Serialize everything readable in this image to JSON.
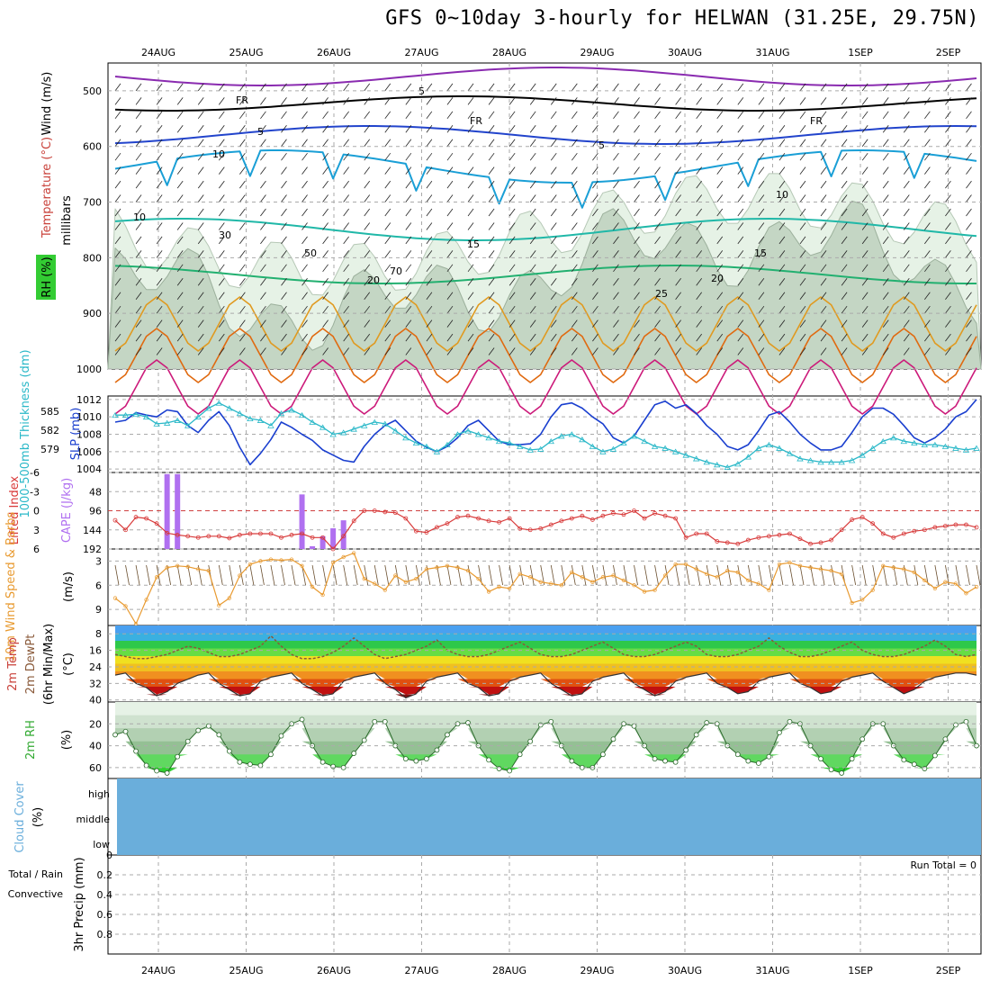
{
  "title": "GFS 0~10day 3-hourly for HELWAN (31.25E, 29.75N)",
  "chart_data": [
    {
      "type": "line",
      "panel": "upper_air",
      "dates": [
        "24AUG",
        "25AUG",
        "26AUG",
        "27AUG",
        "28AUG",
        "29AUG",
        "30AUG",
        "31AUG",
        "1SEP",
        "2SEP"
      ],
      "ylabel": "millibars",
      "yticks": [
        500,
        600,
        700,
        800,
        900,
        1000
      ],
      "ylim": [
        450,
        1000
      ],
      "label_wind": "Wind (m/s)",
      "label_temp": "Temperature (°C)",
      "label_rh": "RH (%)",
      "isotherm_labels": [
        "5",
        "FR",
        "5",
        "10",
        "15",
        "20",
        "25",
        "FR",
        "5",
        "10",
        "15",
        "20",
        "FR"
      ],
      "rh_contour_labels": [
        "10",
        "30",
        "50",
        "70"
      ],
      "colors": {
        "t_m5": "#8a2bb0",
        "t_0": "#000000",
        "t_5": "#2244cc",
        "t_10": "#1a9fd6",
        "t_15": "#20b8a8",
        "t_20": "#22b070",
        "t_25": "#e09a20",
        "t_30": "#e06a10",
        "t_35": "#cc1a7a",
        "rh_lo": "#e8f4e8",
        "rh_mid": "#c8dcc8",
        "rh_hi": "#9cb89c",
        "rh_top": "#44c044"
      }
    },
    {
      "type": "line",
      "panel": "pressure",
      "label_thick": "1000-500mb Thickness (dm)",
      "label_slp": "SLP (mb)",
      "yticks_left": [
        579,
        582,
        585
      ],
      "yticks_right": [
        1004,
        1006,
        1008,
        1010,
        1012
      ],
      "series": [
        {
          "values": [
            1009.4,
            1009.6,
            1010.5,
            1010.2,
            1010.0,
            1010.8,
            1010.6,
            1009.0,
            1008.2,
            1009.6,
            1010.6,
            1009.0,
            1006.5,
            1004.5,
            1005.8,
            1007.4,
            1009.4,
            1008.8,
            1008.0,
            1007.3,
            1006.2,
            1005.6,
            1005.0,
            1004.8,
            1006.6,
            1008.0,
            1009.0,
            1009.6,
            1008.4,
            1007.2,
            1006.5,
            1006.0,
            1006.6,
            1007.6,
            1009.0,
            1009.6,
            1008.4,
            1007.2,
            1006.8,
            1006.8,
            1006.9,
            1008.0,
            1010.0,
            1011.4,
            1011.6,
            1011.0,
            1010.0,
            1009.2,
            1007.6,
            1007.0,
            1007.8,
            1009.6,
            1011.4,
            1011.8,
            1011.0,
            1011.4,
            1010.4,
            1009.0,
            1008.0,
            1006.6,
            1006.2,
            1006.8,
            1008.4,
            1010.2,
            1010.6,
            1009.4,
            1008.0,
            1007.0,
            1006.2,
            1006.2,
            1006.6,
            1008.2,
            1010.0,
            1011.0,
            1011.0,
            1010.3,
            1009.0,
            1007.6,
            1007.0,
            1007.6,
            1008.6,
            1010.0,
            1010.6,
            1012.0
          ]
        },
        {
          "values": [
            1010.2,
            1010.2,
            1010.3,
            1010.0,
            1009.2,
            1009.3,
            1009.6,
            1009.0,
            1010.0,
            1011.0,
            1011.6,
            1011.0,
            1010.4,
            1009.8,
            1009.6,
            1009.0,
            1010.4,
            1010.8,
            1010.2,
            1009.4,
            1008.8,
            1008.0,
            1008.2,
            1008.6,
            1009.0,
            1009.4,
            1009.2,
            1008.4,
            1007.6,
            1007.0,
            1006.6,
            1006.0,
            1006.8,
            1008.0,
            1008.4,
            1008.0,
            1007.6,
            1007.2,
            1007.0,
            1006.6,
            1006.2,
            1006.3,
            1007.2,
            1007.8,
            1008.0,
            1007.4,
            1006.6,
            1006.0,
            1006.3,
            1007.0,
            1007.8,
            1007.2,
            1006.6,
            1006.4,
            1006.0,
            1005.6,
            1005.2,
            1004.8,
            1004.5,
            1004.2,
            1004.6,
            1005.4,
            1006.4,
            1006.8,
            1006.4,
            1005.8,
            1005.2,
            1005.0,
            1004.8,
            1004.8,
            1004.8,
            1005.0,
            1005.6,
            1006.4,
            1007.2,
            1007.6,
            1007.2,
            1007.0,
            1006.8,
            1006.8,
            1006.6,
            1006.4,
            1006.2,
            1006.4
          ]
        }
      ]
    },
    {
      "type": "bar",
      "panel": "stability",
      "label_li": "Lifted Index",
      "label_cape": "CAPE (J/kg)",
      "li_ticks": [
        "-6",
        "-3",
        "0",
        "3",
        "6"
      ],
      "cape_ticks": [
        "48",
        "96",
        "144",
        "192"
      ],
      "cape_values": [
        0,
        0,
        0,
        0,
        0,
        4,
        4,
        0,
        0,
        0,
        0,
        0,
        0,
        0,
        0,
        0,
        0,
        0,
        0,
        0,
        0,
        0,
        0,
        0,
        0,
        0,
        0,
        0,
        0,
        0,
        0,
        0,
        0,
        0,
        0,
        0,
        0,
        0,
        0,
        0,
        0,
        0,
        0,
        0,
        0,
        0,
        0,
        0,
        0,
        0,
        0,
        0,
        0,
        0,
        0,
        0,
        0,
        0,
        0,
        0,
        0,
        0,
        0,
        0,
        0,
        0,
        0,
        0,
        0,
        0,
        0,
        0,
        0,
        0,
        0,
        0,
        0,
        0,
        0,
        0,
        0,
        0,
        0,
        0
      ],
      "cape_peak_day26": [
        55,
        185,
        160,
        140,
        120,
        0
      ],
      "li_values": [
        1.5,
        3.0,
        1.0,
        1.2,
        2.0,
        3.5,
        3.8,
        4.0,
        4.2,
        4.0,
        4.0,
        4.3,
        3.8,
        3.6,
        3.6,
        3.6,
        4.2,
        3.8,
        3.6,
        4.2,
        4.2,
        6.0,
        4.0,
        1.6,
        0.0,
        0.0,
        0.2,
        0.3,
        1.2,
        3.2,
        3.4,
        2.6,
        2.0,
        1.0,
        0.8,
        1.2,
        1.6,
        1.8,
        1.2,
        2.8,
        3.0,
        2.8,
        2.2,
        1.6,
        1.2,
        0.8,
        1.4,
        0.8,
        0.4,
        0.6,
        0.0,
        1.2,
        0.4,
        0.8,
        1.2,
        4.2,
        3.6,
        3.6,
        4.8,
        5.0,
        5.2,
        4.6,
        4.2,
        4.0,
        3.8,
        3.6,
        4.4,
        5.2,
        5.0,
        4.6,
        3.0,
        1.4,
        1.0,
        2.0,
        3.6,
        4.2,
        3.6,
        3.2,
        3.0,
        2.6,
        2.4,
        2.2,
        2.2,
        2.6
      ]
    },
    {
      "type": "line",
      "panel": "wind10m",
      "label": "10m Wind Speed & Barbs",
      "unit": "(m/s)",
      "yticks": [
        3,
        6,
        9
      ],
      "values": [
        7.6,
        8.6,
        10.8,
        7.8,
        5.0,
        3.8,
        3.6,
        3.7,
        4.0,
        4.2,
        8.5,
        7.6,
        4.8,
        3.4,
        3.0,
        2.8,
        2.9,
        2.8,
        3.6,
        6.2,
        7.2,
        3.2,
        2.5,
        2.0,
        5.2,
        5.8,
        6.6,
        4.8,
        5.6,
        5.2,
        4.0,
        3.8,
        3.6,
        3.8,
        4.2,
        5.2,
        6.8,
        6.2,
        6.4,
        4.6,
        5.0,
        5.6,
        5.8,
        6.0,
        4.4,
        5.0,
        5.6,
        5.0,
        4.8,
        5.4,
        6.0,
        6.8,
        6.6,
        4.8,
        3.4,
        3.4,
        4.0,
        4.6,
        5.0,
        4.2,
        4.4,
        5.4,
        5.8,
        6.6,
        3.4,
        3.2,
        3.6,
        3.8,
        4.0,
        4.2,
        4.6,
        8.2,
        7.8,
        6.6,
        3.6,
        3.8,
        4.0,
        4.4,
        5.4,
        6.4,
        5.6,
        5.8,
        7.0,
        6.2
      ]
    },
    {
      "type": "area",
      "panel": "temp2m",
      "label_temp": "2m Temp",
      "label_dew": "2m DewPt",
      "label_range": "(6hr Min/Max)",
      "unit": "(°C)",
      "yticks": [
        8,
        16,
        24,
        32,
        40
      ],
      "temp": [
        28,
        27,
        32,
        34,
        38,
        36,
        32,
        30,
        28,
        27,
        32,
        35,
        38,
        37,
        31,
        29,
        28,
        27,
        32,
        35,
        38,
        37,
        31,
        29,
        28,
        27,
        32,
        35,
        39,
        37,
        31,
        29,
        28,
        27,
        32,
        34,
        38,
        37,
        31,
        29,
        28,
        27,
        32,
        35,
        38,
        37,
        31,
        29,
        28,
        27,
        32,
        35,
        38,
        36,
        31,
        29,
        28,
        27,
        32,
        34,
        37,
        36,
        31,
        29,
        28,
        27,
        32,
        34,
        37,
        36,
        31,
        29,
        28,
        27,
        31,
        34,
        37,
        35,
        31,
        29,
        28,
        27,
        27,
        28
      ],
      "dew": [
        18,
        19,
        20,
        20,
        19,
        18,
        16,
        14,
        15,
        17,
        19,
        19,
        18,
        16,
        14,
        9,
        14,
        18,
        20,
        20,
        19,
        17,
        14,
        10,
        14,
        18,
        20,
        19,
        18,
        16,
        14,
        11,
        16,
        18,
        19,
        19,
        18,
        16,
        14,
        12,
        15,
        18,
        19,
        19,
        18,
        16,
        14,
        12,
        15,
        18,
        19,
        19,
        18,
        16,
        14,
        12,
        14,
        18,
        19,
        19,
        18,
        16,
        14,
        10,
        14,
        17,
        19,
        19,
        18,
        16,
        14,
        12,
        16,
        18,
        19,
        19,
        18,
        16,
        14,
        11,
        14,
        18,
        19,
        18
      ],
      "band_colors": [
        "#4aa0f0",
        "#3ab0e0",
        "#2ec84a",
        "#66dd44",
        "#f0e020",
        "#f0c020",
        "#f09020",
        "#e05010",
        "#c01010",
        "#801010"
      ]
    },
    {
      "type": "area",
      "panel": "rh2m",
      "label": "2m RH",
      "unit": "(%)",
      "yticks": [
        20,
        40,
        60
      ],
      "values": [
        30,
        27,
        45,
        58,
        63,
        65,
        50,
        36,
        26,
        22,
        30,
        45,
        55,
        57,
        58,
        48,
        31,
        20,
        16,
        40,
        55,
        59,
        60,
        47,
        35,
        18,
        18,
        40,
        52,
        54,
        52,
        44,
        30,
        20,
        19,
        40,
        53,
        61,
        63,
        48,
        36,
        21,
        18,
        40,
        54,
        60,
        60,
        48,
        34,
        20,
        22,
        40,
        52,
        54,
        55,
        44,
        30,
        19,
        20,
        40,
        48,
        54,
        56,
        50,
        28,
        18,
        20,
        40,
        52,
        62,
        65,
        52,
        34,
        20,
        20,
        40,
        53,
        57,
        61,
        49,
        34,
        21,
        18,
        40
      ]
    },
    {
      "type": "area",
      "panel": "cloud",
      "label": "Cloud Cover",
      "unit": "(%)",
      "levels": [
        "high",
        "middle",
        "low"
      ],
      "fill": "#6aaedb"
    },
    {
      "type": "bar",
      "panel": "precip",
      "label_total_rain": "Total / Rain",
      "label_conv": "Convective",
      "label_axis": "3hr Precip (mm)",
      "yticks": [
        "0",
        "0.2",
        "0.4",
        "0.6",
        "0.8"
      ],
      "run_total": "Run Total = 0",
      "values": []
    }
  ]
}
